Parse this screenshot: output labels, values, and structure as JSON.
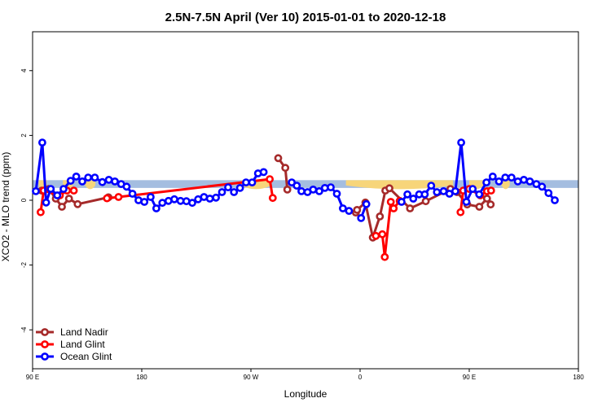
{
  "chart_data": {
    "type": "line",
    "title": "2.5N-7.5N April (Ver 10)   2015-01-01 to 2020-12-18",
    "xlabel": "Longitude",
    "ylabel": "XCO2 - MLO trend (ppm)",
    "xlim": [
      -90,
      180
    ],
    "ylim": [
      -5.2,
      5.2
    ],
    "x_ticks": [
      {
        "value": -90,
        "label": "90 E"
      },
      {
        "value": -36,
        "label": "180"
      },
      {
        "value": 18,
        "label": "90 W"
      },
      {
        "value": 72,
        "label": "0"
      },
      {
        "value": 126,
        "label": "90 E"
      },
      {
        "value": 180,
        "label": "180"
      }
    ],
    "y_ticks": [
      -4,
      -2,
      0,
      2,
      4
    ],
    "background_band": {
      "ymin": 0.38,
      "ymax": 0.62,
      "color": "#a4bde0"
    },
    "land_shading": {
      "color": "#f7d57a",
      "segments": [
        [
          -87,
          -83
        ],
        [
          -75,
          -70
        ],
        [
          -64,
          -59
        ],
        [
          13,
          28
        ],
        [
          65,
          118
        ],
        [
          126,
          133
        ],
        [
          142,
          146
        ]
      ]
    },
    "legend_position": "bottom-left",
    "series": [
      {
        "name": "Land Nadir",
        "color": "#a52a2a",
        "points": [
          [
            -85.5,
            0.3
          ],
          [
            -82,
            0.35
          ],
          [
            -78.5,
            0.05
          ],
          [
            -75.5,
            -0.2
          ],
          [
            -72,
            0.05
          ],
          [
            -67.7,
            -0.12
          ],
          [
            -52.5,
            0.09
          ],
          [
            -48.2,
            null
          ],
          [
            31.5,
            1.3
          ],
          [
            35,
            1.0
          ],
          [
            36,
            0.33
          ],
          [
            -55,
            null
          ],
          [
            69.9,
            -0.38
          ],
          [
            70.5,
            -0.3
          ],
          [
            74.6,
            -0.07
          ],
          [
            78.3,
            -1.15
          ],
          [
            81.8,
            -0.5
          ],
          [
            84.5,
            0.3
          ],
          [
            86.5,
            0.37
          ],
          [
            96.7,
            -0.25
          ],
          [
            104.5,
            -0.03
          ],
          [
            116.7,
            0.35
          ],
          [
            120,
            0.25
          ],
          [
            125,
            -0.13
          ],
          [
            131,
            -0.2
          ],
          [
            134.8,
            0.05
          ],
          [
            136.6,
            -0.13
          ]
        ]
      },
      {
        "name": "Land Glint",
        "color": "#ff0000",
        "points": [
          [
            -86,
            -0.37
          ],
          [
            -84.5,
            0.3
          ],
          [
            -76.5,
            0.15
          ],
          [
            -73,
            0.3
          ],
          [
            -69.6,
            0.3
          ],
          [
            null,
            null
          ],
          [
            -53.2,
            0.06
          ],
          [
            -47.5,
            0.1
          ],
          [
            27.3,
            0.65
          ],
          [
            28.8,
            0.07
          ],
          [
            null,
            null
          ],
          [
            79.8,
            -1.1
          ],
          [
            83,
            -1.05
          ],
          [
            84.2,
            -1.75
          ],
          [
            87.2,
            -0.05
          ],
          [
            88.6,
            -0.25
          ],
          [
            91.6,
            -0.02
          ],
          [
            null,
            null
          ],
          [
            121.7,
            -0.37
          ],
          [
            123,
            0.3
          ],
          [
            126,
            0.35
          ],
          [
            131.5,
            0.15
          ],
          [
            134.8,
            0.28
          ],
          [
            136.8,
            0.3
          ]
        ]
      },
      {
        "name": "Ocean Glint",
        "color": "#0000ff",
        "points": [
          [
            -88.4,
            0.28
          ],
          [
            -85.2,
            1.78
          ],
          [
            -83.3,
            -0.07
          ],
          [
            -81,
            0.35
          ],
          [
            -77.8,
            0.15
          ],
          [
            -74.7,
            0.35
          ],
          [
            -71.2,
            0.6
          ],
          [
            -68.4,
            0.73
          ],
          [
            -65.4,
            0.58
          ],
          [
            -62.5,
            0.7
          ],
          [
            -59.2,
            0.7
          ],
          [
            -55.5,
            0.56
          ],
          [
            -52.3,
            0.63
          ],
          [
            -49.3,
            0.58
          ],
          [
            -46.2,
            0.5
          ],
          [
            -43.5,
            0.42
          ],
          [
            -40.6,
            0.2
          ],
          [
            -37.6,
            0.0
          ],
          [
            -34.7,
            -0.05
          ],
          [
            -31.6,
            0.1
          ],
          [
            -28.8,
            -0.25
          ],
          [
            -25.8,
            -0.08
          ],
          [
            -22.8,
            -0.02
          ],
          [
            -19.9,
            0.03
          ],
          [
            -16.8,
            -0.02
          ],
          [
            -13.9,
            -0.03
          ],
          [
            -11,
            -0.08
          ],
          [
            -8.1,
            0.03
          ],
          [
            -5.2,
            0.1
          ],
          [
            -2.3,
            0.05
          ],
          [
            0.7,
            0.08
          ],
          [
            3.7,
            0.25
          ],
          [
            6.7,
            0.4
          ],
          [
            9.6,
            0.25
          ],
          [
            12.6,
            0.38
          ],
          [
            15.6,
            0.55
          ],
          [
            18.6,
            0.55
          ],
          [
            21.5,
            0.83
          ],
          [
            24.3,
            0.87
          ],
          [
            30.5,
            null
          ],
          [
            38.2,
            0.55
          ],
          [
            40.7,
            0.45
          ],
          [
            43,
            0.28
          ],
          [
            46,
            0.25
          ],
          [
            48.8,
            0.33
          ],
          [
            51.8,
            0.28
          ],
          [
            54.6,
            0.38
          ],
          [
            57.5,
            0.4
          ],
          [
            60.5,
            0.2
          ],
          [
            63.5,
            -0.25
          ],
          [
            66.5,
            -0.33
          ],
          [
            null,
            null
          ],
          [
            72.5,
            -0.55
          ],
          [
            75.1,
            -0.12
          ],
          [
            null,
            null
          ],
          [
            92.5,
            -0.05
          ],
          [
            95.4,
            0.18
          ],
          [
            98.3,
            0.05
          ],
          [
            101.2,
            0.18
          ],
          [
            104,
            0.18
          ],
          [
            107.2,
            0.45
          ],
          [
            110,
            0.25
          ],
          [
            113.3,
            0.28
          ],
          [
            116.2,
            0.2
          ],
          [
            119.1,
            0.28
          ],
          [
            122,
            1.78
          ],
          [
            124.6,
            -0.05
          ],
          [
            127.7,
            0.35
          ],
          [
            130.9,
            0.18
          ],
          [
            134.5,
            0.55
          ],
          [
            137.6,
            0.73
          ],
          [
            140.7,
            0.58
          ],
          [
            143.8,
            0.7
          ],
          [
            146.9,
            0.7
          ],
          [
            150,
            0.58
          ],
          [
            153,
            0.63
          ],
          [
            156,
            0.58
          ],
          [
            159.2,
            0.5
          ],
          [
            162,
            0.42
          ],
          [
            165.2,
            0.22
          ],
          [
            168.3,
            0.0
          ]
        ]
      }
    ]
  }
}
